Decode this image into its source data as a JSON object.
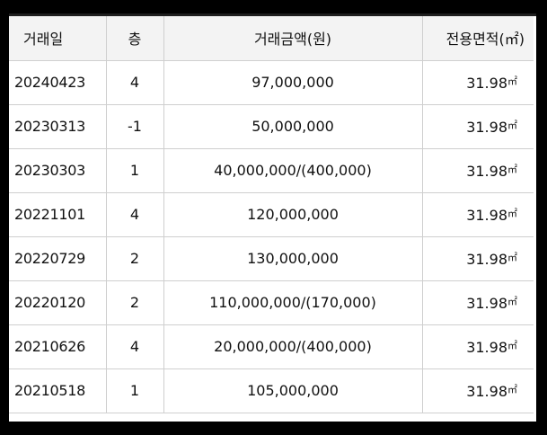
{
  "table": {
    "headers": {
      "date": "거래일",
      "floor": "층",
      "price": "거래금액(원)",
      "area": "전용면적(㎡)"
    },
    "rows": [
      {
        "date": "20240423",
        "floor": "4",
        "price": "97,000,000",
        "area": "31.98",
        "unit": "㎡"
      },
      {
        "date": "20230313",
        "floor": "-1",
        "price": "50,000,000",
        "area": "31.98",
        "unit": "㎡"
      },
      {
        "date": "20230303",
        "floor": "1",
        "price": "40,000,000/(400,000)",
        "area": "31.98",
        "unit": "㎡"
      },
      {
        "date": "20221101",
        "floor": "4",
        "price": "120,000,000",
        "area": "31.98",
        "unit": "㎡"
      },
      {
        "date": "20220729",
        "floor": "2",
        "price": "130,000,000",
        "area": "31.98",
        "unit": "㎡"
      },
      {
        "date": "20220120",
        "floor": "2",
        "price": "110,000,000/(170,000)",
        "area": "31.98",
        "unit": "㎡"
      },
      {
        "date": "20210626",
        "floor": "4",
        "price": "20,000,000/(400,000)",
        "area": "31.98",
        "unit": "㎡"
      },
      {
        "date": "20210518",
        "floor": "1",
        "price": "105,000,000",
        "area": "31.98",
        "unit": "㎡"
      }
    ]
  }
}
